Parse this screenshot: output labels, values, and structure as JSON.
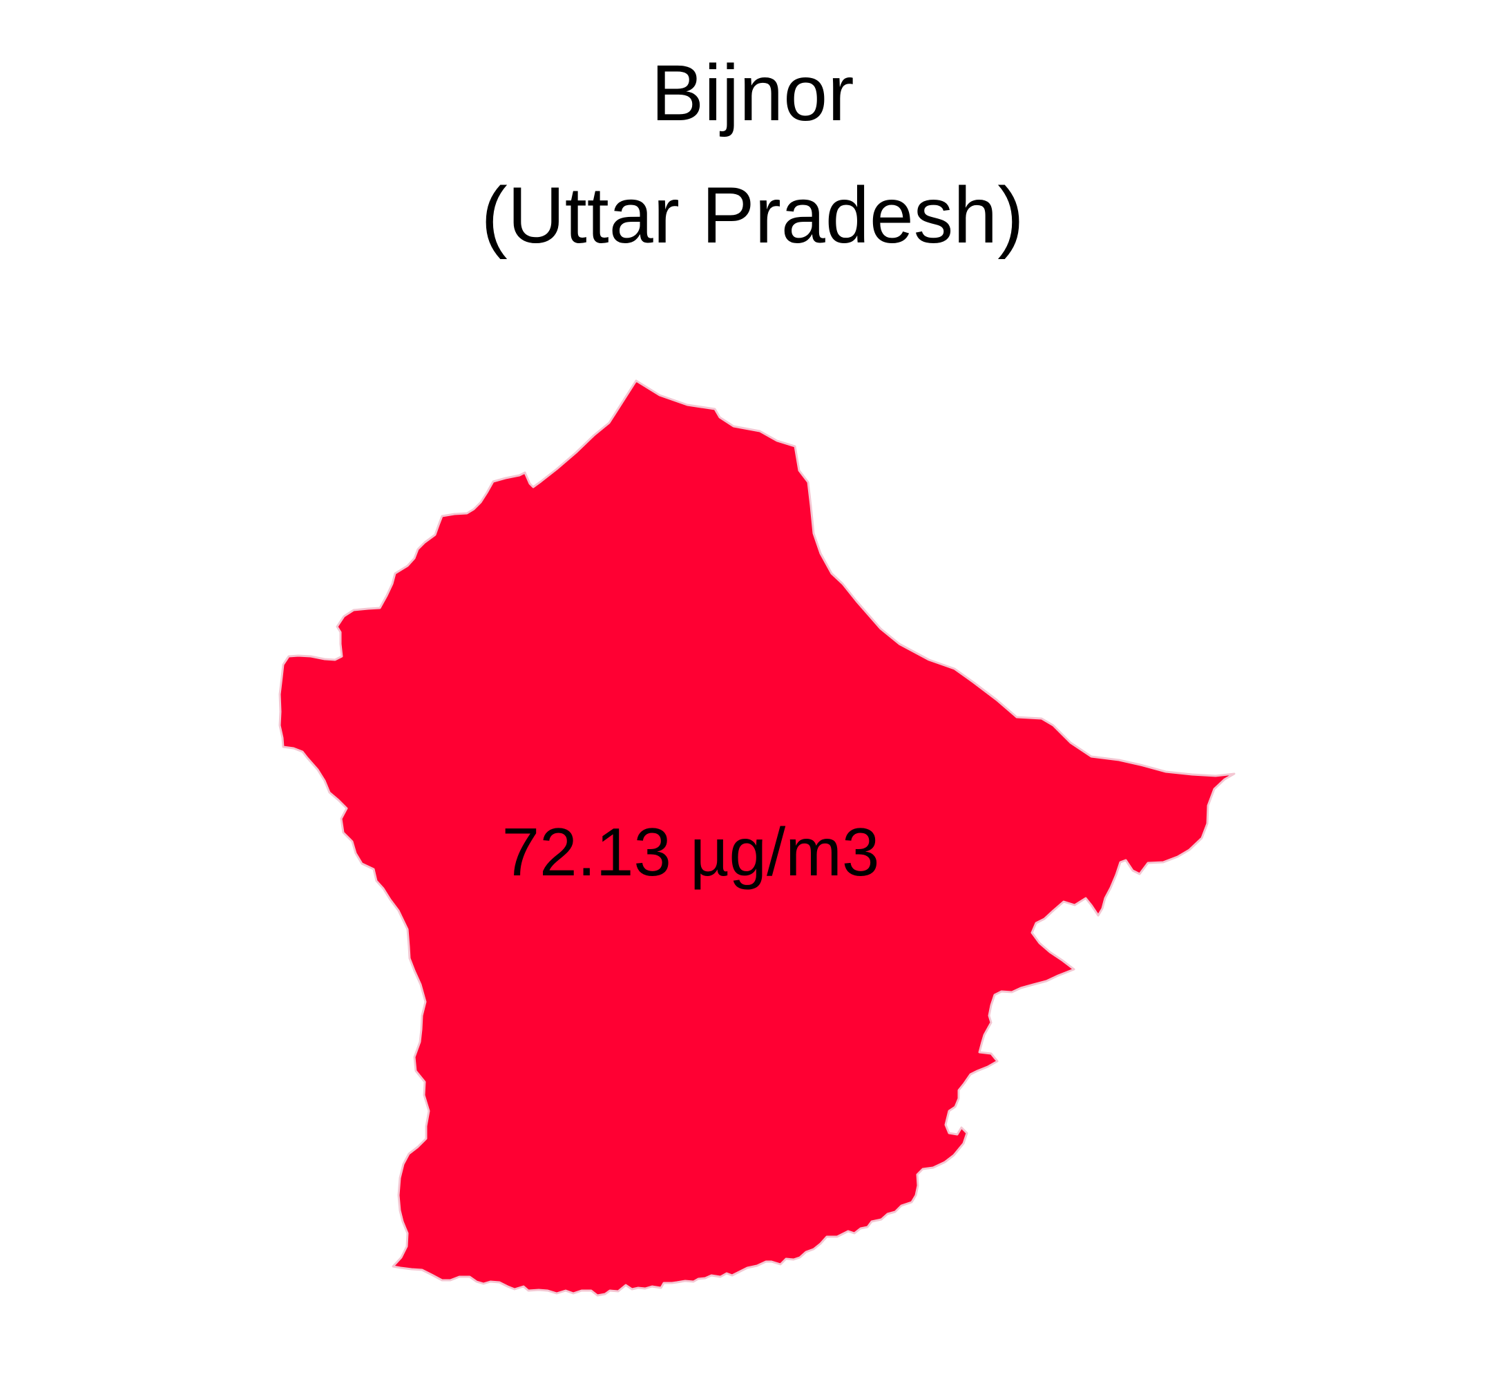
{
  "title": {
    "district": "Bijnor",
    "state": "(Uttar Pradesh)"
  },
  "region": {
    "label": "72.13 µg/m3",
    "value": 72.13,
    "unit": "µg/m3",
    "fill_color": "#FF0033",
    "outline_color": "#F4C6D2"
  }
}
